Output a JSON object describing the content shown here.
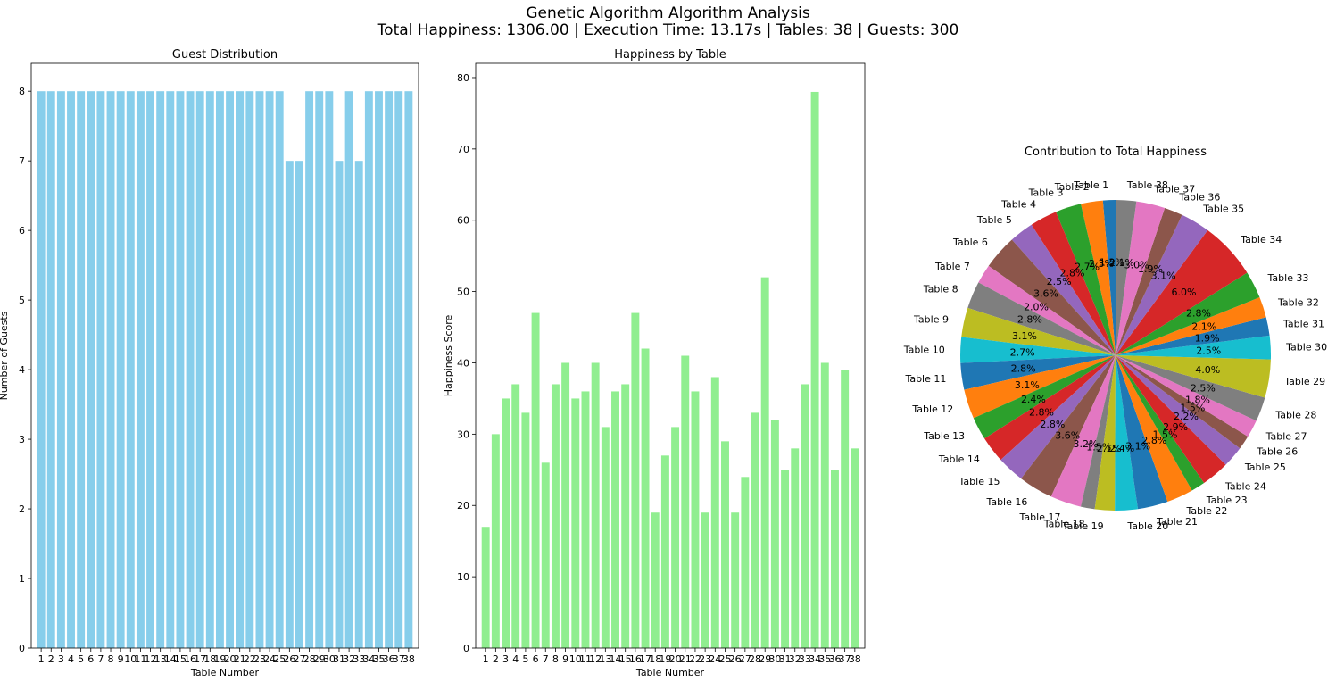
{
  "figure": {
    "title_line1": "Genetic Algorithm Algorithm Analysis",
    "title_line2": "Total Happiness: 1306.00 | Execution Time: 13.17s | Tables: 38 | Guests: 300"
  },
  "chart_data": [
    {
      "type": "bar",
      "title": "Guest Distribution",
      "xlabel": "Table Number",
      "ylabel": "Number of Guests",
      "categories": [
        "1",
        "2",
        "3",
        "4",
        "5",
        "6",
        "7",
        "8",
        "9",
        "10",
        "11",
        "12",
        "13",
        "14",
        "15",
        "16",
        "17",
        "18",
        "19",
        "20",
        "21",
        "22",
        "23",
        "24",
        "25",
        "26",
        "27",
        "28",
        "29",
        "30",
        "31",
        "32",
        "33",
        "34",
        "35",
        "36",
        "37",
        "38"
      ],
      "values": [
        8,
        8,
        8,
        8,
        8,
        8,
        8,
        8,
        8,
        8,
        8,
        8,
        8,
        8,
        8,
        8,
        8,
        8,
        8,
        8,
        8,
        8,
        8,
        8,
        8,
        7,
        7,
        8,
        8,
        8,
        7,
        8,
        7,
        8,
        8,
        8,
        8,
        8
      ],
      "ylim": [
        0,
        8.4
      ],
      "yticks": [
        0,
        1,
        2,
        3,
        4,
        5,
        6,
        7,
        8
      ],
      "color": "#87ceeb",
      "grid": false
    },
    {
      "type": "bar",
      "title": "Happiness by Table",
      "xlabel": "Table Number",
      "ylabel": "Happiness Score",
      "categories": [
        "1",
        "2",
        "3",
        "4",
        "5",
        "6",
        "7",
        "8",
        "9",
        "10",
        "11",
        "12",
        "13",
        "14",
        "15",
        "16",
        "17",
        "18",
        "19",
        "20",
        "21",
        "22",
        "23",
        "24",
        "25",
        "26",
        "27",
        "28",
        "29",
        "30",
        "31",
        "32",
        "33",
        "34",
        "35",
        "36",
        "37",
        "38"
      ],
      "values": [
        17,
        30,
        35,
        37,
        33,
        47,
        26,
        37,
        40,
        35,
        36,
        40,
        31,
        36,
        37,
        47,
        42,
        19,
        27,
        31,
        41,
        36,
        19,
        38,
        29,
        19,
        24,
        33,
        52,
        32,
        25,
        28,
        37,
        78,
        40,
        25,
        39,
        28
      ],
      "ylim": [
        0,
        82
      ],
      "yticks": [
        0,
        10,
        20,
        30,
        40,
        50,
        60,
        70,
        80
      ],
      "color": "#90ee90",
      "grid": false
    },
    {
      "type": "pie",
      "title": "Contribution to Total Happiness",
      "labels": [
        "Table 1",
        "Table 2",
        "Table 3",
        "Table 4",
        "Table 5",
        "Table 6",
        "Table 7",
        "Table 8",
        "Table 9",
        "Table 10",
        "Table 11",
        "Table 12",
        "Table 13",
        "Table 14",
        "Table 15",
        "Table 16",
        "Table 17",
        "Table 18",
        "Table 19",
        "Table 20",
        "Table 21",
        "Table 22",
        "Table 23",
        "Table 24",
        "Table 25",
        "Table 26",
        "Table 27",
        "Table 28",
        "Table 29",
        "Table 30",
        "Table 31",
        "Table 32",
        "Table 33",
        "Table 34",
        "Table 35",
        "Table 36",
        "Table 37",
        "Table 38"
      ],
      "values": [
        17,
        30,
        35,
        37,
        33,
        47,
        26,
        37,
        40,
        35,
        36,
        40,
        31,
        36,
        37,
        47,
        42,
        19,
        27,
        31,
        41,
        36,
        19,
        38,
        29,
        19,
        24,
        33,
        52,
        32,
        25,
        28,
        37,
        78,
        40,
        25,
        39,
        28
      ],
      "pct_labels": [
        "1.3%",
        "2.3%",
        "2.7%",
        "2.8%",
        "2.5%",
        "3.6%",
        "2.0%",
        "2.8%",
        "3.1%",
        "2.7%",
        "2.8%",
        "3.1%",
        "2.4%",
        "2.8%",
        "2.8%",
        "3.6%",
        "3.2%",
        "1.5%",
        "2.1%",
        "2.4%",
        "3.1%",
        "2.8%",
        "1.5%",
        "2.9%",
        "2.2%",
        "1.5%",
        "1.8%",
        "2.5%",
        "4.0%",
        "2.5%",
        "1.9%",
        "2.1%",
        "2.8%",
        "6.0%",
        "3.1%",
        "1.9%",
        "3.0%",
        "2.1%"
      ],
      "start_angle": 90,
      "direction": "counterclockwise",
      "colors": [
        "#1f77b4",
        "#ff7f0e",
        "#2ca02c",
        "#d62728",
        "#9467bd",
        "#8c564b",
        "#e377c2",
        "#7f7f7f",
        "#bcbd22",
        "#17becf"
      ]
    }
  ]
}
